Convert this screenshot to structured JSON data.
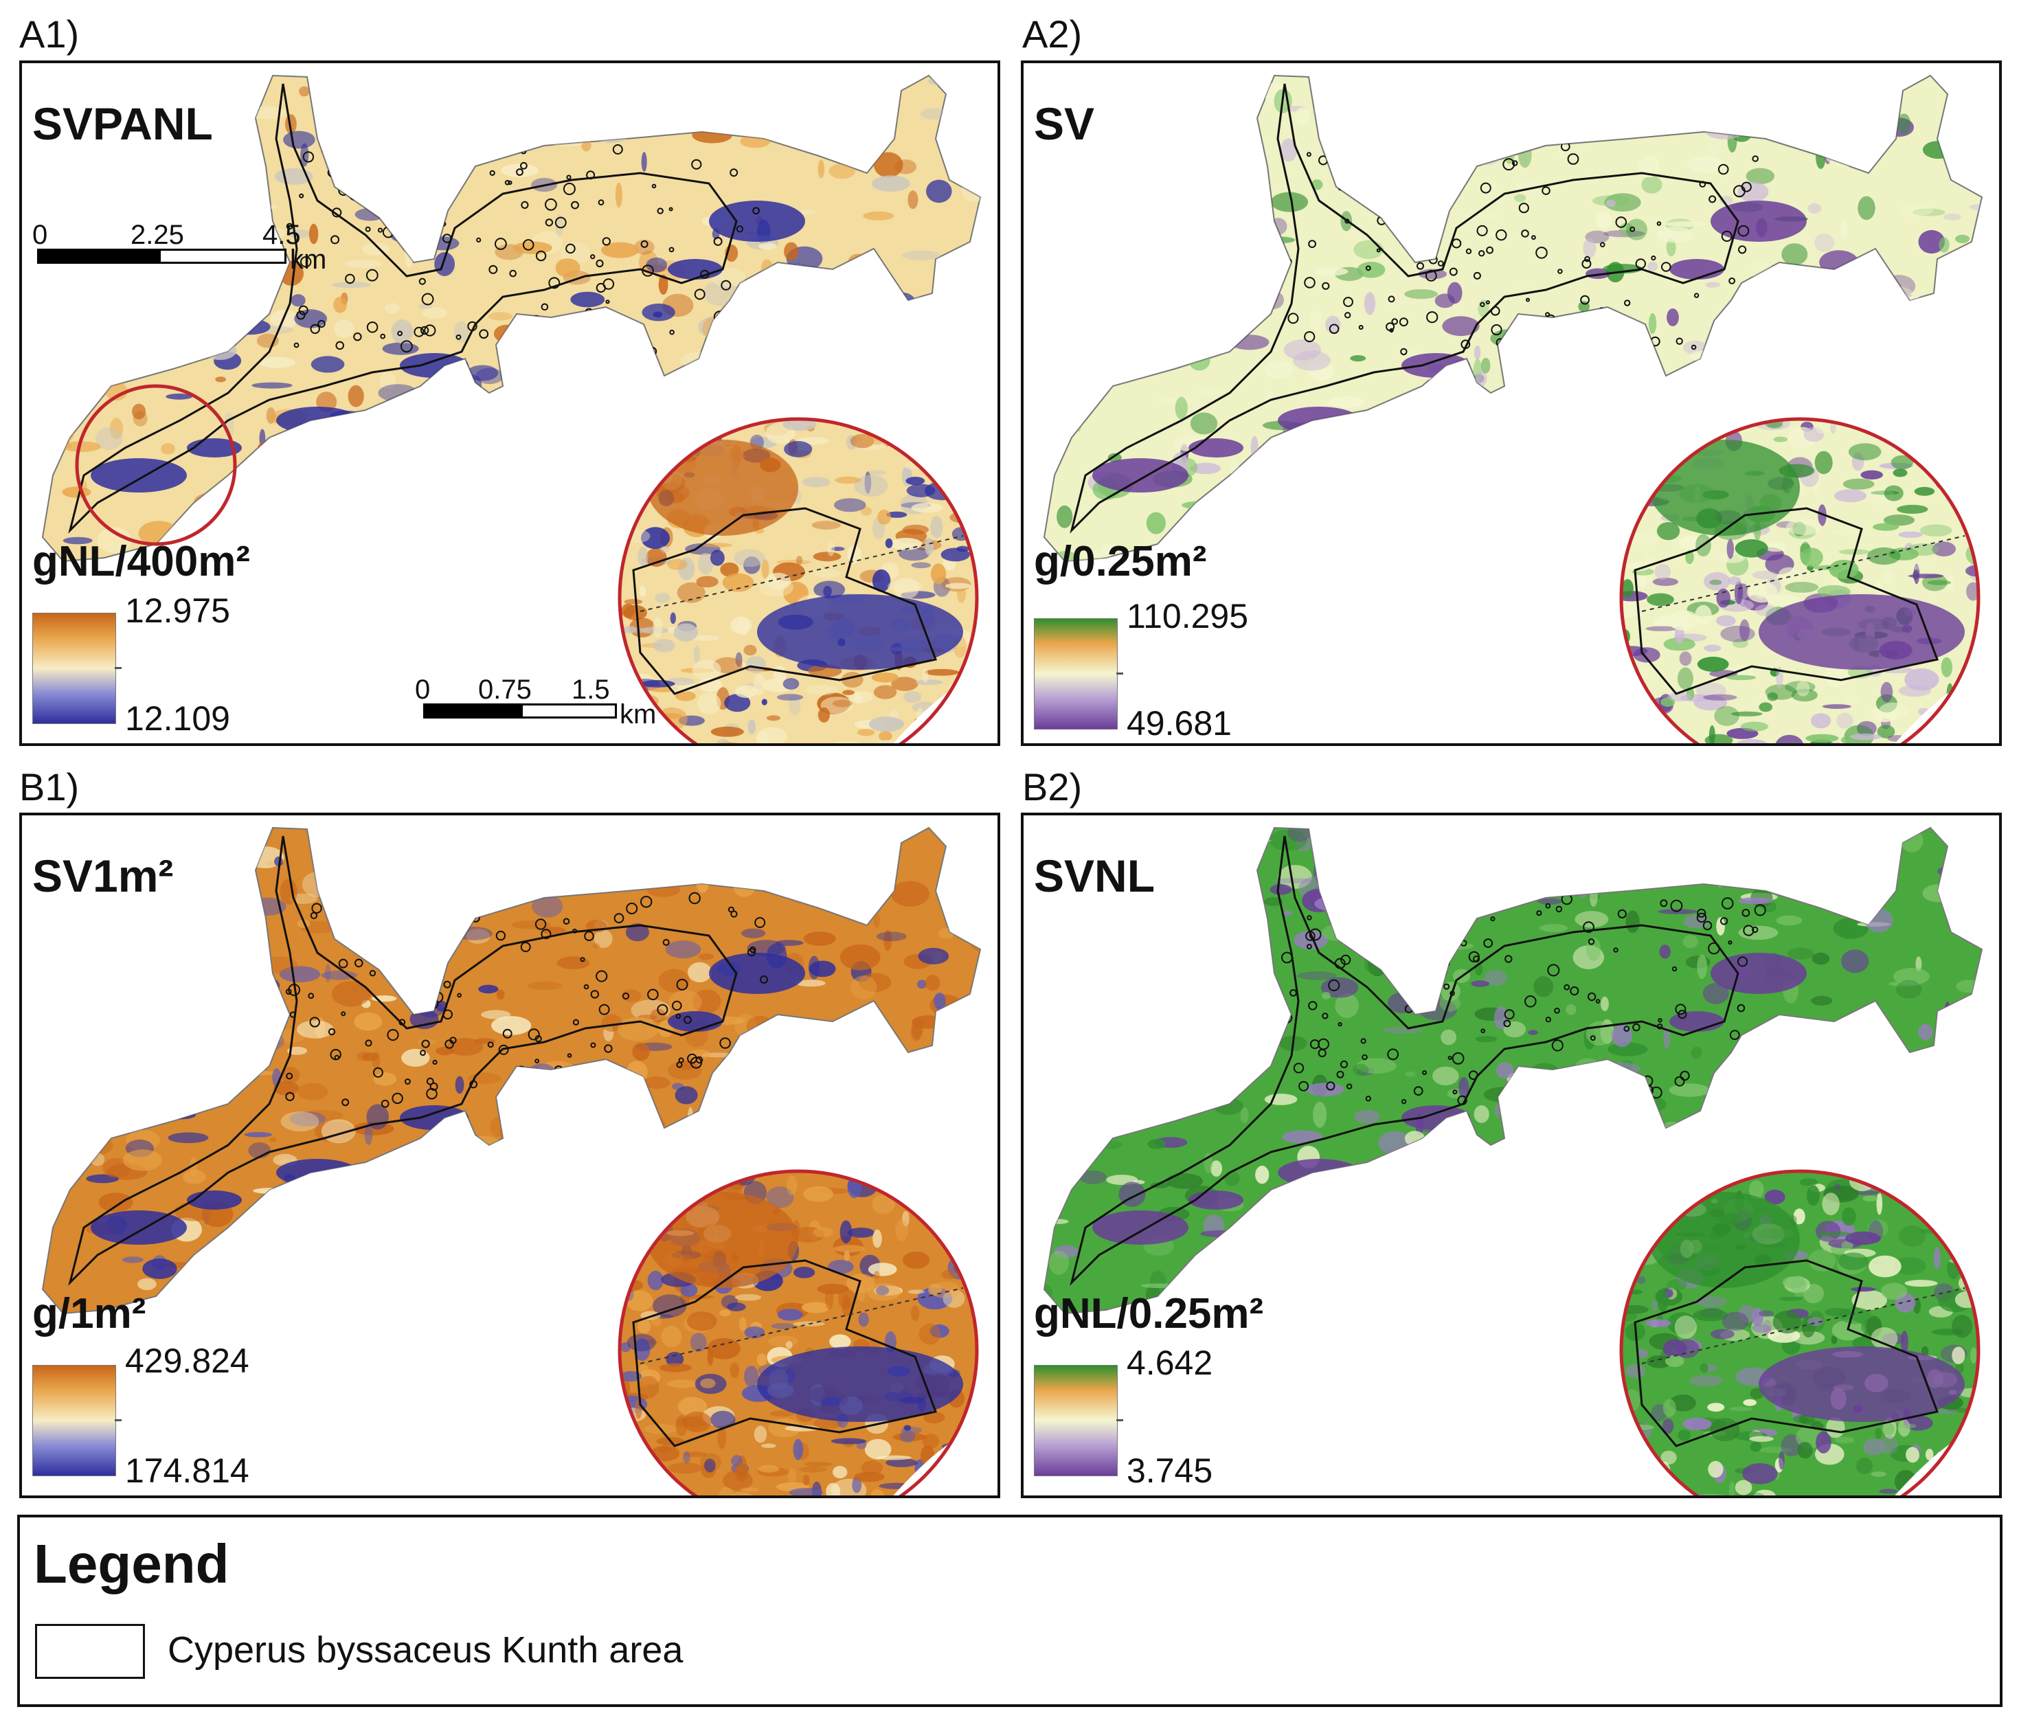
{
  "panels": [
    {
      "letter": "A1)",
      "title": "SVPANL",
      "unit": "gNL/400m²",
      "max": "12.975",
      "min": "12.109",
      "palette": "orange-blue",
      "ramp": {
        "high": "#c8661a",
        "mid": "#f7edc4",
        "low": "#2e2f9f"
      },
      "overview_scalebar": {
        "labels": [
          "0",
          "2.25",
          "4.5"
        ],
        "unit": "km"
      },
      "inset_scalebar": {
        "labels": [
          "0",
          "0.75",
          "1.5"
        ],
        "unit": "km"
      }
    },
    {
      "letter": "A2)",
      "title": "SV",
      "unit": "g/0.25m²",
      "max": "110.295",
      "min": "49.681",
      "palette": "green-purple",
      "ramp": {
        "high": "#2f8f2f",
        "mid": "#f4f6d0",
        "low": "#6a3d9a"
      }
    },
    {
      "letter": "B1)",
      "title": "SV1m²",
      "unit": "g/1m²",
      "max": "429.824",
      "min": "174.814",
      "palette": "orange-blue",
      "ramp": {
        "high": "#c8661a",
        "mid": "#f7edc4",
        "low": "#2e2f9f"
      }
    },
    {
      "letter": "B2)",
      "title": "SVNL",
      "unit": "gNL/0.25m²",
      "max": "4.642",
      "min": "3.745",
      "palette": "green-purple",
      "ramp": {
        "high": "#2f8f2f",
        "mid": "#f4f6d0",
        "low": "#6a3d9a"
      }
    }
  ],
  "legend": {
    "title": "Legend",
    "item": "Cyperus byssaceus Kunth area"
  },
  "colors": {
    "inset_circle": "#c0262d",
    "outline": "#111111"
  }
}
